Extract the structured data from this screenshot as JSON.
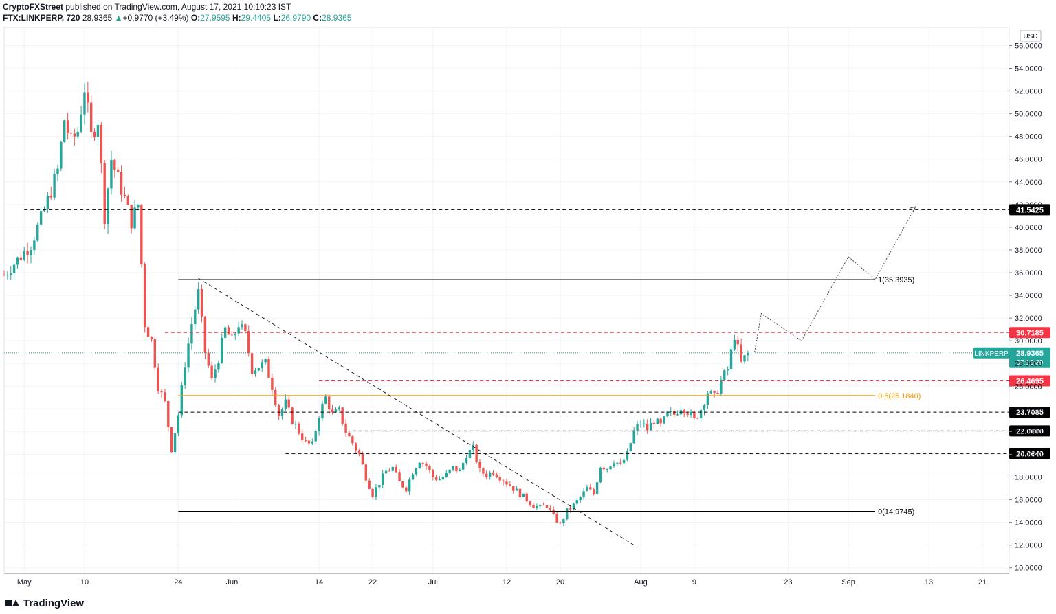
{
  "header": {
    "author": "CryptoFXStreet",
    "published": "published on TradingView.com, August 17, 2021 10:10:23 IST",
    "symbol": "FTX:LINKPERP, 720",
    "last": "28.9365",
    "change": "+0.9770 (+3.49%)",
    "o_label": "O:",
    "o": "27.9595",
    "h_label": "H:",
    "h": "29.4405",
    "l_label": "L:",
    "l": "26.9790",
    "c_label": "C:",
    "c": "28.9365"
  },
  "footer": {
    "brand": "TradingView"
  },
  "colors": {
    "up": "#26a69a",
    "down": "#ef5350",
    "resistance": "#f23645",
    "fib": "#ff9800",
    "current": "#26a69a",
    "level": "#000000"
  },
  "chart_data": {
    "type": "candlestick",
    "currency": "USD",
    "ylim": [
      9.5,
      57.6
    ],
    "yticks": [
      "56.0000",
      "54.0000",
      "52.0000",
      "50.0000",
      "48.0000",
      "46.0000",
      "44.0000",
      "42.0000",
      "40.0000",
      "38.0000",
      "36.0000",
      "34.0000",
      "32.0000",
      "30.0000",
      "28.0000",
      "26.0000",
      "24.0000",
      "22.0000",
      "20.0000",
      "18.0000",
      "16.0000",
      "14.0000",
      "12.0000",
      "10.0000"
    ],
    "x_start": "2021-04-28",
    "x_end": "2021-09-25",
    "xticks": [
      {
        "date": "2021-05-01",
        "label": "May"
      },
      {
        "date": "2021-05-10",
        "label": "10"
      },
      {
        "date": "2021-05-24",
        "label": "24"
      },
      {
        "date": "2021-06-01",
        "label": "Jun"
      },
      {
        "date": "2021-06-14",
        "label": "14"
      },
      {
        "date": "2021-06-22",
        "label": "22"
      },
      {
        "date": "2021-07-01",
        "label": "Jul"
      },
      {
        "date": "2021-07-12",
        "label": "12"
      },
      {
        "date": "2021-07-20",
        "label": "20"
      },
      {
        "date": "2021-08-01",
        "label": "Aug"
      },
      {
        "date": "2021-08-09",
        "label": "9"
      },
      {
        "date": "2021-08-23",
        "label": "23"
      },
      {
        "date": "2021-09-01",
        "label": "Sep"
      },
      {
        "date": "2021-09-13",
        "label": "13"
      },
      {
        "date": "2021-09-21",
        "label": "21"
      }
    ],
    "price_path": [
      [
        "2021-04-28",
        35.8
      ],
      [
        "2021-05-02",
        38.5
      ],
      [
        "2021-05-04",
        41.5
      ],
      [
        "2021-05-06",
        45.0
      ],
      [
        "2021-05-07",
        49.5
      ],
      [
        "2021-05-08",
        47.5
      ],
      [
        "2021-05-09",
        48.5
      ],
      [
        "2021-05-10",
        52.3
      ],
      [
        "2021-05-11",
        48.0
      ],
      [
        "2021-05-12",
        49.5
      ],
      [
        "2021-05-13",
        41.0
      ],
      [
        "2021-05-14",
        46.0
      ],
      [
        "2021-05-16",
        42.5
      ],
      [
        "2021-05-17",
        40.5
      ],
      [
        "2021-05-18",
        42.0
      ],
      [
        "2021-05-19",
        31.5
      ],
      [
        "2021-05-20",
        30.0
      ],
      [
        "2021-05-21",
        26.0
      ],
      [
        "2021-05-22",
        24.5
      ],
      [
        "2021-05-23",
        20.5
      ],
      [
        "2021-05-24",
        23.5
      ],
      [
        "2021-05-25",
        28.0
      ],
      [
        "2021-05-26",
        31.5
      ],
      [
        "2021-05-27",
        34.2
      ],
      [
        "2021-05-28",
        29.0
      ],
      [
        "2021-05-29",
        26.5
      ],
      [
        "2021-05-30",
        28.5
      ],
      [
        "2021-05-31",
        31.0
      ],
      [
        "2021-06-01",
        30.0
      ],
      [
        "2021-06-02",
        31.5
      ],
      [
        "2021-06-03",
        30.5
      ],
      [
        "2021-06-04",
        27.5
      ],
      [
        "2021-06-06",
        28.0
      ],
      [
        "2021-06-07",
        26.0
      ],
      [
        "2021-06-08",
        23.5
      ],
      [
        "2021-06-09",
        24.5
      ],
      [
        "2021-06-10",
        23.0
      ],
      [
        "2021-06-12",
        21.0
      ],
      [
        "2021-06-13",
        20.8
      ],
      [
        "2021-06-14",
        23.5
      ],
      [
        "2021-06-15",
        25.0
      ],
      [
        "2021-06-16",
        23.5
      ],
      [
        "2021-06-17",
        23.8
      ],
      [
        "2021-06-18",
        22.0
      ],
      [
        "2021-06-19",
        21.0
      ],
      [
        "2021-06-20",
        20.0
      ],
      [
        "2021-06-21",
        18.0
      ],
      [
        "2021-06-22",
        16.5
      ],
      [
        "2021-06-23",
        17.5
      ],
      [
        "2021-06-24",
        18.5
      ],
      [
        "2021-06-25",
        18.8
      ],
      [
        "2021-06-26",
        17.5
      ],
      [
        "2021-06-27",
        17.0
      ],
      [
        "2021-06-28",
        18.5
      ],
      [
        "2021-06-29",
        19.5
      ],
      [
        "2021-06-30",
        19.0
      ],
      [
        "2021-07-01",
        18.0
      ],
      [
        "2021-07-02",
        17.8
      ],
      [
        "2021-07-03",
        18.2
      ],
      [
        "2021-07-04",
        18.8
      ],
      [
        "2021-07-05",
        18.5
      ],
      [
        "2021-07-06",
        20.0
      ],
      [
        "2021-07-07",
        20.5
      ],
      [
        "2021-07-08",
        18.5
      ],
      [
        "2021-07-09",
        18.2
      ],
      [
        "2021-07-10",
        18.5
      ],
      [
        "2021-07-11",
        18.0
      ],
      [
        "2021-07-12",
        17.5
      ],
      [
        "2021-07-13",
        17.0
      ],
      [
        "2021-07-14",
        16.5
      ],
      [
        "2021-07-15",
        16.0
      ],
      [
        "2021-07-16",
        15.5
      ],
      [
        "2021-07-17",
        15.3
      ],
      [
        "2021-07-18",
        15.5
      ],
      [
        "2021-07-19",
        14.5
      ],
      [
        "2021-07-20",
        13.8
      ],
      [
        "2021-07-21",
        15.0
      ],
      [
        "2021-07-22",
        15.5
      ],
      [
        "2021-07-23",
        16.2
      ],
      [
        "2021-07-24",
        17.0
      ],
      [
        "2021-07-25",
        16.5
      ],
      [
        "2021-07-26",
        19.0
      ],
      [
        "2021-07-27",
        18.8
      ],
      [
        "2021-07-28",
        19.5
      ],
      [
        "2021-07-29",
        19.0
      ],
      [
        "2021-07-30",
        20.0
      ],
      [
        "2021-07-31",
        22.0
      ],
      [
        "2021-08-01",
        22.8
      ],
      [
        "2021-08-02",
        22.2
      ],
      [
        "2021-08-03",
        23.0
      ],
      [
        "2021-08-04",
        22.5
      ],
      [
        "2021-08-05",
        23.5
      ],
      [
        "2021-08-06",
        23.5
      ],
      [
        "2021-08-07",
        24.2
      ],
      [
        "2021-08-08",
        23.8
      ],
      [
        "2021-08-09",
        23.0
      ],
      [
        "2021-08-10",
        24.0
      ],
      [
        "2021-08-11",
        25.5
      ],
      [
        "2021-08-12",
        25.0
      ],
      [
        "2021-08-13",
        26.5
      ],
      [
        "2021-08-14",
        27.5
      ],
      [
        "2021-08-15",
        30.5
      ],
      [
        "2021-08-16",
        28.0
      ],
      [
        "2021-08-17",
        28.9365
      ]
    ],
    "levels": [
      {
        "kind": "dashed",
        "color": "#000000",
        "value": 41.5425,
        "label": "41.5425",
        "start": "2021-05-01"
      },
      {
        "kind": "dashed",
        "color": "#f23645",
        "value": 30.7185,
        "label": "30.7185",
        "start": "2021-05-22"
      },
      {
        "kind": "dashed",
        "color": "#f23645",
        "value": 26.4695,
        "label": "26.4695",
        "start": "2021-06-14"
      },
      {
        "kind": "dashed",
        "color": "#000000",
        "value": 23.7085,
        "label": "23.7085",
        "start": "2021-05-24"
      },
      {
        "kind": "dashed",
        "color": "#000000",
        "value": 22.06,
        "label": "22.0600",
        "start": "2021-06-19"
      },
      {
        "kind": "dashed",
        "color": "#000000",
        "value": 20.064,
        "label": "20.0640",
        "start": "2021-06-09"
      }
    ],
    "current": {
      "value": 28.9365,
      "symbol": "LINKPERP",
      "price": "28.9365",
      "countdown": "07:19:39"
    },
    "fib": [
      {
        "value": 35.3935,
        "label": "1(35.3935)",
        "color": "#000000"
      },
      {
        "value": 25.184,
        "label": "0.5(25.1840)",
        "color": "#ff9800"
      },
      {
        "value": 14.9745,
        "label": "0(14.9745)",
        "color": "#000000"
      }
    ],
    "fib_start": "2021-05-24",
    "fib_end": "2021-09-05",
    "trendline": [
      [
        "2021-05-27",
        35.5
      ],
      [
        "2021-07-31",
        12.0
      ]
    ],
    "projection": [
      [
        "2021-08-18",
        29.0
      ],
      [
        "2021-08-19",
        32.4
      ],
      [
        "2021-08-25",
        30.0
      ],
      [
        "2021-09-01",
        37.4
      ],
      [
        "2021-09-05",
        35.4
      ],
      [
        "2021-09-11",
        41.8
      ]
    ]
  }
}
